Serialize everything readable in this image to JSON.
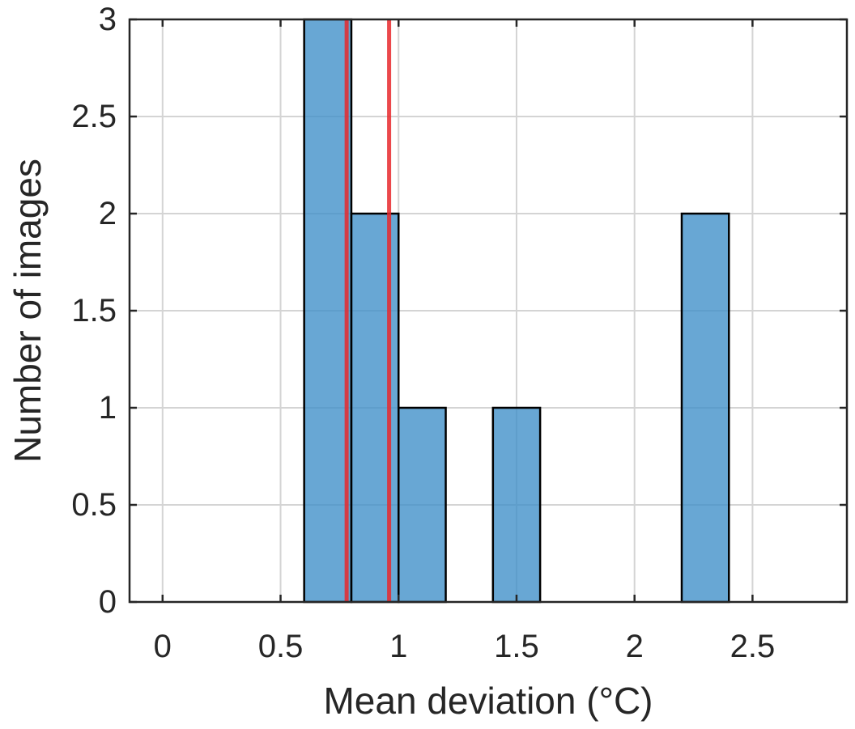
{
  "chart_data": {
    "type": "histogram",
    "title": "",
    "xlabel": "Mean deviation (°C)",
    "ylabel": "Number of images",
    "xlim": [
      -0.14,
      2.9
    ],
    "ylim": [
      0,
      3
    ],
    "xticks": [
      0,
      0.5,
      1,
      1.5,
      2,
      2.5
    ],
    "xtick_labels": [
      "0",
      "0.5",
      "1",
      "1.5",
      "2",
      "2.5"
    ],
    "yticks": [
      0,
      0.5,
      1,
      1.5,
      2,
      2.5,
      3
    ],
    "ytick_labels": [
      "0",
      "0.5",
      "1",
      "1.5",
      "2",
      "2.5",
      "3"
    ],
    "grid": true,
    "bins": [
      {
        "x0": 0.6,
        "x1": 0.8,
        "count": 3
      },
      {
        "x0": 0.8,
        "x1": 1.0,
        "count": 2
      },
      {
        "x0": 1.0,
        "x1": 1.2,
        "count": 1
      },
      {
        "x0": 1.4,
        "x1": 1.6,
        "count": 1
      },
      {
        "x0": 2.2,
        "x1": 2.4,
        "count": 2
      }
    ],
    "vertical_lines": [
      {
        "x": 0.78,
        "color": "#e8282b"
      },
      {
        "x": 0.96,
        "color": "#e8282b"
      }
    ],
    "bar_color": "#3e8ec8",
    "bar_edge_color": "#000000"
  }
}
